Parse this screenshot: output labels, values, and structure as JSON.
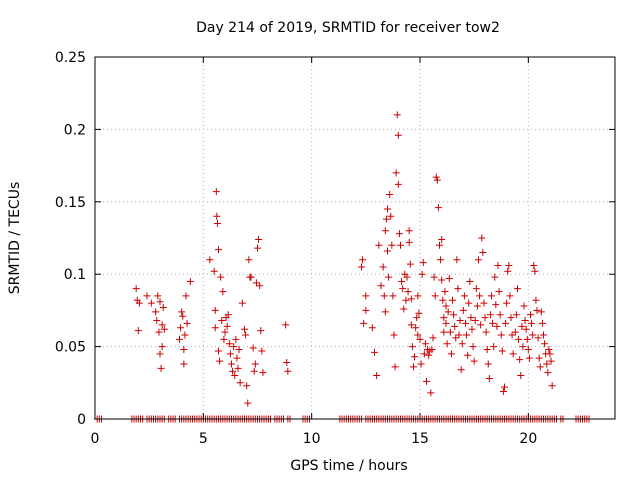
{
  "chart_data": {
    "type": "scatter",
    "title": "Day 214 of 2019, SRMTID for receiver tow2",
    "xlabel": "GPS time / hours",
    "ylabel": "SRMTID / TECUs",
    "xlim": [
      0,
      24
    ],
    "ylim": [
      0,
      0.25
    ],
    "xticks": [
      0,
      5,
      10,
      15,
      20
    ],
    "yticks": [
      0,
      0.05,
      0.1,
      0.15,
      0.2,
      0.25
    ],
    "xtick_labels": [
      "0",
      "5",
      "10",
      "15",
      "20"
    ],
    "ytick_labels": [
      "0",
      "0.05",
      "0.1",
      "0.15",
      "0.2",
      "0.25"
    ],
    "grid": true,
    "marker": "+",
    "color": "#cc0000",
    "series": [
      {
        "name": "SRMTID",
        "points": [
          [
            1.9,
            0.09
          ],
          [
            1.95,
            0.082
          ],
          [
            2.0,
            0.061
          ],
          [
            2.05,
            0.08
          ],
          [
            2.4,
            0.085
          ],
          [
            2.6,
            0.08
          ],
          [
            2.8,
            0.074
          ],
          [
            2.85,
            0.068
          ],
          [
            2.9,
            0.085
          ],
          [
            2.95,
            0.06
          ],
          [
            3.0,
            0.081
          ],
          [
            3.0,
            0.045
          ],
          [
            3.05,
            0.035
          ],
          [
            3.1,
            0.05
          ],
          [
            3.1,
            0.065
          ],
          [
            3.15,
            0.077
          ],
          [
            3.2,
            0.062
          ],
          [
            3.9,
            0.055
          ],
          [
            3.95,
            0.063
          ],
          [
            4.0,
            0.074
          ],
          [
            4.05,
            0.071
          ],
          [
            4.1,
            0.038
          ],
          [
            4.1,
            0.048
          ],
          [
            4.15,
            0.058
          ],
          [
            4.2,
            0.085
          ],
          [
            4.25,
            0.066
          ],
          [
            4.4,
            0.095
          ],
          [
            5.3,
            0.11
          ],
          [
            5.5,
            0.102
          ],
          [
            5.55,
            0.075
          ],
          [
            5.55,
            0.063
          ],
          [
            5.6,
            0.157
          ],
          [
            5.62,
            0.14
          ],
          [
            5.65,
            0.135
          ],
          [
            5.7,
            0.117
          ],
          [
            5.7,
            0.047
          ],
          [
            5.75,
            0.04
          ],
          [
            5.8,
            0.098
          ],
          [
            5.85,
            0.068
          ],
          [
            5.9,
            0.088
          ],
          [
            5.95,
            0.055
          ],
          [
            6.0,
            0.06
          ],
          [
            6.05,
            0.07
          ],
          [
            6.1,
            0.064
          ],
          [
            6.15,
            0.072
          ],
          [
            6.2,
            0.052
          ],
          [
            6.25,
            0.045
          ],
          [
            6.3,
            0.038
          ],
          [
            6.35,
            0.033
          ],
          [
            6.4,
            0.05
          ],
          [
            6.45,
            0.03
          ],
          [
            6.5,
            0.055
          ],
          [
            6.55,
            0.042
          ],
          [
            6.6,
            0.035
          ],
          [
            6.65,
            0.048
          ],
          [
            6.7,
            0.025
          ],
          [
            6.8,
            0.08
          ],
          [
            6.9,
            0.062
          ],
          [
            6.95,
            0.058
          ],
          [
            7.0,
            0.023
          ],
          [
            7.05,
            0.011
          ],
          [
            7.1,
            0.11
          ],
          [
            7.15,
            0.098
          ],
          [
            7.2,
            0.098
          ],
          [
            7.3,
            0.049
          ],
          [
            7.35,
            0.033
          ],
          [
            7.4,
            0.038
          ],
          [
            7.45,
            0.094
          ],
          [
            7.5,
            0.118
          ],
          [
            7.55,
            0.124
          ],
          [
            7.6,
            0.092
          ],
          [
            7.65,
            0.061
          ],
          [
            7.7,
            0.047
          ],
          [
            7.75,
            0.032
          ],
          [
            8.8,
            0.065
          ],
          [
            8.85,
            0.039
          ],
          [
            8.9,
            0.033
          ],
          [
            12.3,
            0.105
          ],
          [
            12.35,
            0.11
          ],
          [
            12.4,
            0.066
          ],
          [
            12.5,
            0.085
          ],
          [
            12.5,
            0.075
          ],
          [
            12.8,
            0.063
          ],
          [
            12.9,
            0.046
          ],
          [
            13.0,
            0.03
          ],
          [
            13.1,
            0.12
          ],
          [
            13.2,
            0.092
          ],
          [
            13.3,
            0.105
          ],
          [
            13.35,
            0.085
          ],
          [
            13.4,
            0.074
          ],
          [
            13.4,
            0.13
          ],
          [
            13.45,
            0.138
          ],
          [
            13.5,
            0.145
          ],
          [
            13.5,
            0.116
          ],
          [
            13.55,
            0.098
          ],
          [
            13.6,
            0.155
          ],
          [
            13.65,
            0.14
          ],
          [
            13.7,
            0.12
          ],
          [
            13.75,
            0.085
          ],
          [
            13.8,
            0.058
          ],
          [
            13.85,
            0.036
          ],
          [
            13.9,
            0.17
          ],
          [
            13.95,
            0.21
          ],
          [
            14.0,
            0.196
          ],
          [
            14.0,
            0.162
          ],
          [
            14.05,
            0.128
          ],
          [
            14.1,
            0.12
          ],
          [
            14.15,
            0.095
          ],
          [
            14.2,
            0.09
          ],
          [
            14.25,
            0.076
          ],
          [
            14.3,
            0.1
          ],
          [
            14.35,
            0.082
          ],
          [
            14.4,
            0.098
          ],
          [
            14.45,
            0.088
          ],
          [
            14.5,
            0.13
          ],
          [
            14.5,
            0.122
          ],
          [
            14.55,
            0.107
          ],
          [
            14.6,
            0.083
          ],
          [
            14.6,
            0.065
          ],
          [
            14.65,
            0.05
          ],
          [
            14.7,
            0.036
          ],
          [
            14.75,
            0.043
          ],
          [
            14.8,
            0.063
          ],
          [
            14.85,
            0.07
          ],
          [
            14.9,
            0.085
          ],
          [
            14.9,
            0.058
          ],
          [
            14.95,
            0.073
          ],
          [
            15.0,
            0.055
          ],
          [
            15.05,
            0.038
          ],
          [
            15.1,
            0.1
          ],
          [
            15.15,
            0.108
          ],
          [
            15.2,
            0.045
          ],
          [
            15.25,
            0.052
          ],
          [
            15.3,
            0.026
          ],
          [
            15.35,
            0.048
          ],
          [
            15.4,
            0.044
          ],
          [
            15.45,
            0.047
          ],
          [
            15.5,
            0.018
          ],
          [
            15.55,
            0.048
          ],
          [
            15.6,
            0.056
          ],
          [
            15.65,
            0.098
          ],
          [
            15.7,
            0.085
          ],
          [
            15.75,
            0.167
          ],
          [
            15.8,
            0.165
          ],
          [
            15.85,
            0.146
          ],
          [
            15.9,
            0.12
          ],
          [
            15.95,
            0.11
          ],
          [
            16.0,
            0.124
          ],
          [
            16.0,
            0.096
          ],
          [
            16.05,
            0.082
          ],
          [
            16.1,
            0.07
          ],
          [
            16.1,
            0.06
          ],
          [
            16.15,
            0.088
          ],
          [
            16.2,
            0.078
          ],
          [
            16.2,
            0.066
          ],
          [
            16.25,
            0.052
          ],
          [
            16.3,
            0.074
          ],
          [
            16.35,
            0.097
          ],
          [
            16.4,
            0.06
          ],
          [
            16.45,
            0.045
          ],
          [
            16.5,
            0.082
          ],
          [
            16.55,
            0.072
          ],
          [
            16.6,
            0.064
          ],
          [
            16.65,
            0.056
          ],
          [
            16.7,
            0.11
          ],
          [
            16.75,
            0.09
          ],
          [
            16.8,
            0.058
          ],
          [
            16.85,
            0.068
          ],
          [
            16.9,
            0.034
          ],
          [
            16.95,
            0.052
          ],
          [
            17.0,
            0.075
          ],
          [
            17.05,
            0.085
          ],
          [
            17.1,
            0.066
          ],
          [
            17.15,
            0.058
          ],
          [
            17.2,
            0.044
          ],
          [
            17.25,
            0.08
          ],
          [
            17.3,
            0.095
          ],
          [
            17.35,
            0.07
          ],
          [
            17.4,
            0.062
          ],
          [
            17.45,
            0.05
          ],
          [
            17.5,
            0.04
          ],
          [
            17.55,
            0.068
          ],
          [
            17.6,
            0.09
          ],
          [
            17.65,
            0.078
          ],
          [
            17.7,
            0.11
          ],
          [
            17.75,
            0.085
          ],
          [
            17.8,
            0.065
          ],
          [
            17.85,
            0.125
          ],
          [
            17.9,
            0.115
          ],
          [
            17.95,
            0.08
          ],
          [
            18.0,
            0.07
          ],
          [
            18.05,
            0.06
          ],
          [
            18.1,
            0.048
          ],
          [
            18.15,
            0.038
          ],
          [
            18.2,
            0.028
          ],
          [
            18.25,
            0.072
          ],
          [
            18.3,
            0.085
          ],
          [
            18.35,
            0.066
          ],
          [
            18.4,
            0.05
          ],
          [
            18.45,
            0.098
          ],
          [
            18.5,
            0.079
          ],
          [
            18.55,
            0.064
          ],
          [
            18.6,
            0.106
          ],
          [
            18.65,
            0.088
          ],
          [
            18.7,
            0.072
          ],
          [
            18.75,
            0.058
          ],
          [
            18.8,
            0.047
          ],
          [
            18.85,
            0.019
          ],
          [
            18.9,
            0.022
          ],
          [
            18.95,
            0.066
          ],
          [
            19.0,
            0.08
          ],
          [
            19.05,
            0.102
          ],
          [
            19.1,
            0.106
          ],
          [
            19.15,
            0.085
          ],
          [
            19.2,
            0.07
          ],
          [
            19.25,
            0.058
          ],
          [
            19.3,
            0.045
          ],
          [
            19.4,
            0.06
          ],
          [
            19.45,
            0.072
          ],
          [
            19.5,
            0.09
          ],
          [
            19.55,
            0.055
          ],
          [
            19.6,
            0.041
          ],
          [
            19.65,
            0.03
          ],
          [
            19.7,
            0.064
          ],
          [
            19.75,
            0.05
          ],
          [
            19.8,
            0.078
          ],
          [
            19.85,
            0.068
          ],
          [
            19.9,
            0.062
          ],
          [
            19.95,
            0.055
          ],
          [
            20.0,
            0.048
          ],
          [
            20.05,
            0.042
          ],
          [
            20.1,
            0.072
          ],
          [
            20.15,
            0.066
          ],
          [
            20.2,
            0.058
          ],
          [
            20.25,
            0.106
          ],
          [
            20.3,
            0.102
          ],
          [
            20.35,
            0.082
          ],
          [
            20.4,
            0.075
          ],
          [
            20.45,
            0.056
          ],
          [
            20.5,
            0.042
          ],
          [
            20.55,
            0.036
          ],
          [
            20.6,
            0.074
          ],
          [
            20.65,
            0.066
          ],
          [
            20.7,
            0.058
          ],
          [
            20.75,
            0.052
          ],
          [
            20.8,
            0.045
          ],
          [
            20.85,
            0.038
          ],
          [
            20.9,
            0.032
          ],
          [
            20.95,
            0.048
          ],
          [
            21.0,
            0.045
          ],
          [
            21.05,
            0.04
          ],
          [
            21.1,
            0.023
          ]
        ],
        "zero_x": [
          0.1,
          0.2,
          0.3,
          1.7,
          1.8,
          1.9,
          2.0,
          2.1,
          2.2,
          2.4,
          2.5,
          2.6,
          2.7,
          2.8,
          2.9,
          3.0,
          3.1,
          3.2,
          3.4,
          3.5,
          3.6,
          3.7,
          3.9,
          4.0,
          4.1,
          4.2,
          4.3,
          4.4,
          4.5,
          4.6,
          4.7,
          4.8,
          4.9,
          5.0,
          5.1,
          5.2,
          5.3,
          5.4,
          5.5,
          5.6,
          5.7,
          5.8,
          5.9,
          6.0,
          6.1,
          6.2,
          6.3,
          6.4,
          6.5,
          6.6,
          6.7,
          6.8,
          6.9,
          7.0,
          7.1,
          7.2,
          7.3,
          7.4,
          7.5,
          7.6,
          7.7,
          7.8,
          7.9,
          8.0,
          8.1,
          8.3,
          8.4,
          8.5,
          8.6,
          8.7,
          8.9,
          9.0,
          9.6,
          9.7,
          9.8,
          9.9,
          11.3,
          11.4,
          11.5,
          11.6,
          11.7,
          11.8,
          11.9,
          12.0,
          12.1,
          12.2,
          12.3,
          12.5,
          12.6,
          12.7,
          12.8,
          12.9,
          13.0,
          13.1,
          13.2,
          13.3,
          13.4,
          13.5,
          13.6,
          13.7,
          13.8,
          13.9,
          14.0,
          14.1,
          14.2,
          14.3,
          14.4,
          14.5,
          14.6,
          14.7,
          14.8,
          14.9,
          15.0,
          15.1,
          15.2,
          15.3,
          15.4,
          15.5,
          15.6,
          15.7,
          15.8,
          15.9,
          16.0,
          16.1,
          16.2,
          16.3,
          16.4,
          16.5,
          16.6,
          16.7,
          16.8,
          16.9,
          17.0,
          17.1,
          17.2,
          17.3,
          17.4,
          17.5,
          17.6,
          17.7,
          17.8,
          17.9,
          18.0,
          18.1,
          18.2,
          18.3,
          18.4,
          18.5,
          18.6,
          18.7,
          18.8,
          18.9,
          19.0,
          19.1,
          19.2,
          19.3,
          19.4,
          19.5,
          19.6,
          19.7,
          19.8,
          19.9,
          20.0,
          20.1,
          20.2,
          20.3,
          20.4,
          20.5,
          20.6,
          20.7,
          20.8,
          20.9,
          21.0,
          21.1,
          21.2,
          21.3,
          21.5,
          21.6,
          22.2,
          22.3,
          22.4,
          22.5,
          22.6,
          22.7,
          22.8
        ]
      }
    ]
  }
}
